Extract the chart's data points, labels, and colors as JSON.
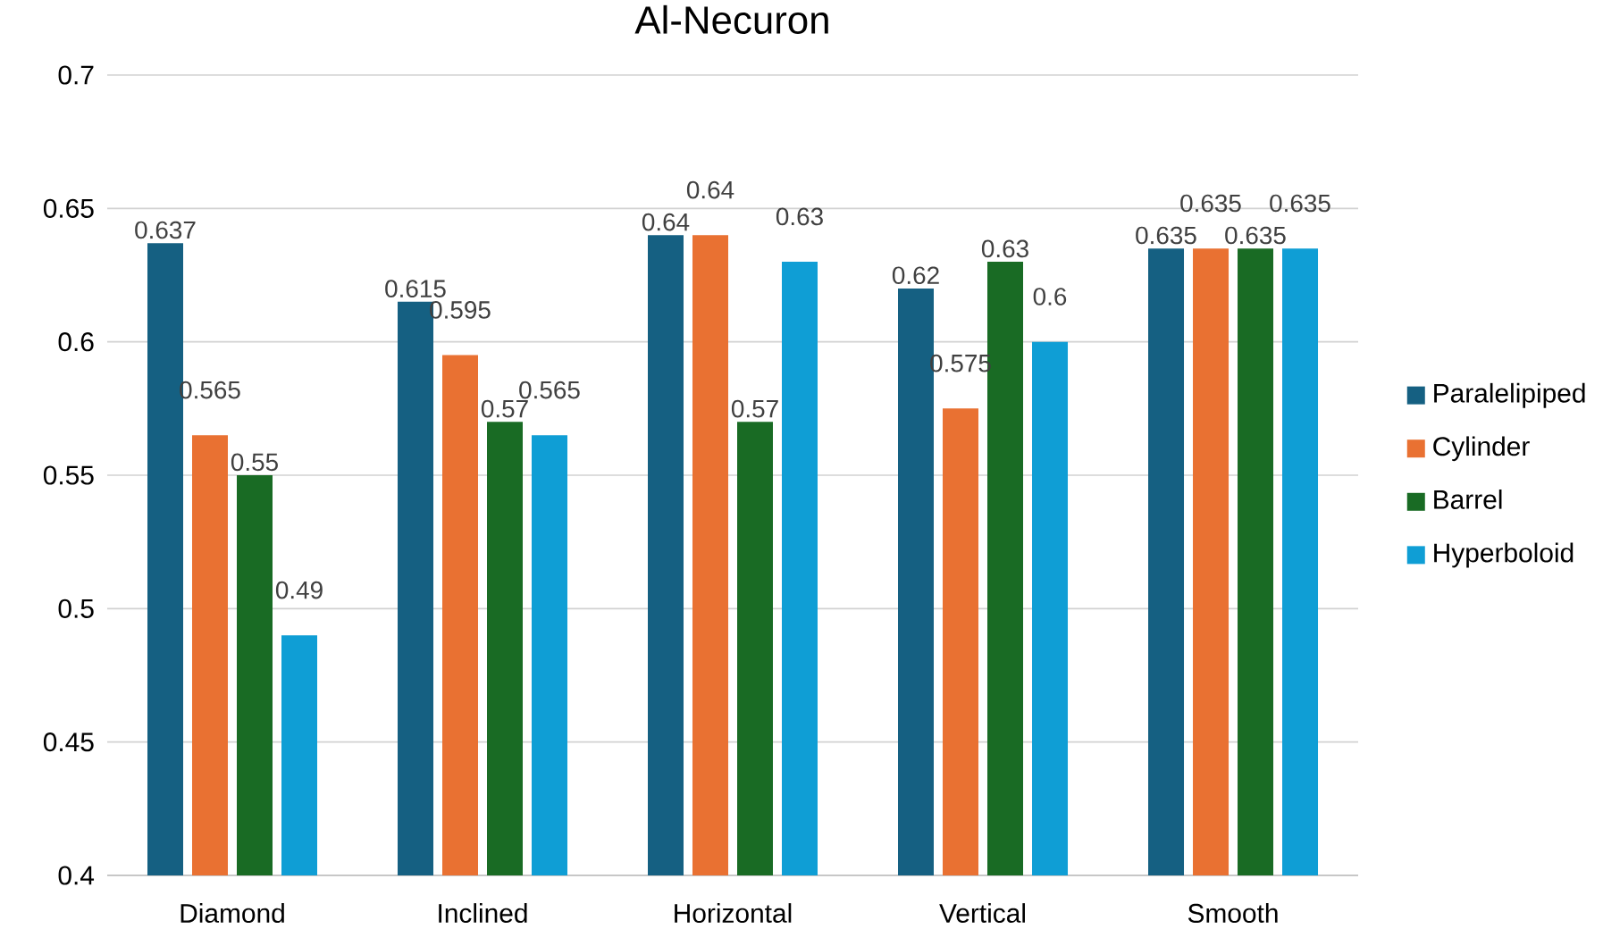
{
  "chart_data": {
    "type": "bar",
    "title": "Al-Necuron",
    "categories": [
      "Diamond",
      "Inclined",
      "Horizontal",
      "Vertical",
      "Smooth"
    ],
    "series": [
      {
        "name": "Paralelipiped",
        "color": "#156082",
        "values": [
          0.637,
          0.615,
          0.64,
          0.62,
          0.635
        ]
      },
      {
        "name": "Cylinder",
        "color": "#e97132",
        "values": [
          0.565,
          0.595,
          0.64,
          0.575,
          0.635
        ]
      },
      {
        "name": "Barrel",
        "color": "#196b24",
        "values": [
          0.55,
          0.57,
          0.57,
          0.63,
          0.635
        ]
      },
      {
        "name": "Hyperboloid",
        "color": "#0f9ed5",
        "values": [
          0.49,
          0.565,
          0.63,
          0.6,
          0.635
        ]
      }
    ],
    "ylim": [
      0.4,
      0.7
    ],
    "yticks": [
      0.4,
      0.45,
      0.5,
      0.55,
      0.6,
      0.65,
      0.7
    ],
    "grid": "y",
    "legend": "right",
    "data_labels": true
  }
}
